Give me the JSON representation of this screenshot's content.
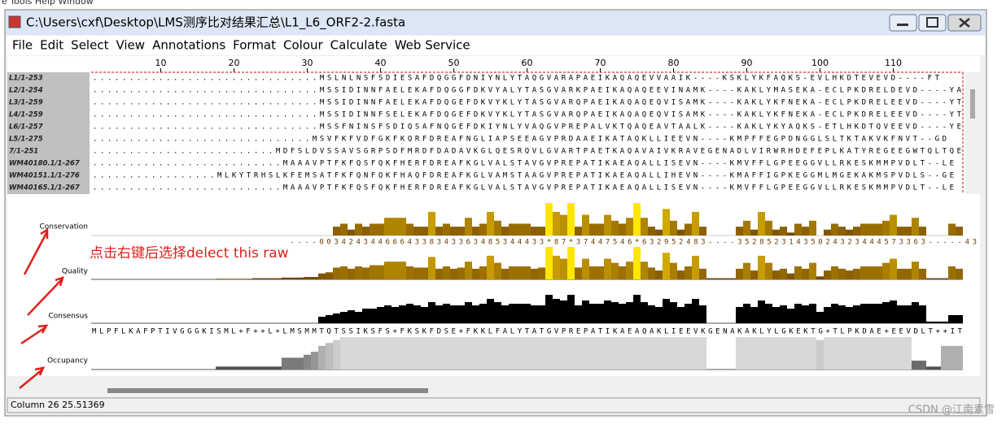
{
  "top_menu_partial": "e  Tools  Help  Window",
  "window": {
    "title": "C:\\Users\\cxf\\Desktop\\LMS测序比对结果汇总\\L1_L6_ORF2-2.fasta",
    "menu": [
      "File",
      "Edit",
      "Select",
      "View",
      "Annotations",
      "Format",
      "Colour",
      "Calculate",
      "Web Service"
    ]
  },
  "ruler": {
    "ticks": [
      10,
      20,
      30,
      40,
      50,
      60,
      70,
      80,
      90,
      100,
      110
    ]
  },
  "sequences": [
    {
      "name": "L1/1-253",
      "residues": "...............................MSLNLNSFSDIESAFDQGGFDNIYNLYTAQGVARAPAEIKAQAQEVVAAIK----KSKLYKFAQKS-EVLHKDTEVEVD----FT"
    },
    {
      "name": "L2/1-254",
      "residues": "...............................MSSIDINNFAELEKAFDQGGFDKVYALYTASGVARKPAEIKAQAQEEVINAMK----KAKLYMASEKA-ECLPKDRELDEVD----YA"
    },
    {
      "name": "L3/1-259",
      "residues": "...............................MSSIDINNFAELEKAFDQGEFDKVYKLYTASGVARQPAEIKAQAQEQVISAMK----KAKLYKFNEKA-ECLPKDRELEEVD----YT"
    },
    {
      "name": "L4/1-259",
      "residues": "...............................MSSIDINNFSELEKAFDQGEFDKVYKLYTASGVARQPAEIKAQAQEQVISAMK----KAKLYKFNEKA-ECLPKDRELEEVD----YT"
    },
    {
      "name": "L6/1-257",
      "residues": "...............................MSSFNINSFSDIQSAFNQGEFDKIYNLYVAQGVPREPALVKTQAQEAVTAALK----KAKLYKYAQKS-ETLHKDTQVEEVD----YE"
    },
    {
      "name": "L5/1-275",
      "residues": "..............................MSVFKFVDFGKFKQRFDREAFNGLIAPSEEAGVPRDAAEIKATAQKLLIEEVN----KMPFFEGPDNGGLSLTKTAKVKFNVT--GD"
    },
    {
      "name": "7/1-251",
      "residues": ".........................MDFSLDVSSAVSGRPSDFMRDFDADAVKGLQESRQVLGVARTPAETKAQAVAIVKRAVEGENADLVIRWRHDEFEPLKATYREGEEGWTQLTQE"
    },
    {
      "name": "WM40180.1/1-267",
      "residues": "..........................MAAAVPTFKFQSFQKFHERFDREAFKGLVALSTAVGVPREPATIKAEAQALLISEVN----KMVFFLGPEEGGVLLRKESKMMPVDLT--LE"
    },
    {
      "name": "WM40151.1/1-276",
      "residues": ".................MLKYTRHSLKFEMSATFKFQNFQKFHAQFDREAFKGLVAMSTAAGVPREPATIKAEAQALLIHEVN----KMAFFIGPKEGGMLMGEKAKMSPVDLS--GE"
    },
    {
      "name": "WM40165.1/1-267",
      "residues": "..........................MAAAVPTFKFQSFQKFHERFDREAFKGLVALSTAVGVPREPATIKAEAQALLISEVN----KMVFFLGPEEGGVLLRKESKMMPVDLT--LE"
    }
  ],
  "annotations": {
    "labels": [
      "Conservation",
      "Quality",
      "Consensus",
      "Occupancy"
    ],
    "conservation": {
      "ylim": [
        0,
        11
      ],
      "scores": "                           ----0034243446664338343363485344433*87*37447546*632952483----35285231435024323444573363-----43",
      "values": [
        0,
        0,
        0,
        0,
        0,
        0,
        0,
        0,
        0,
        0,
        0,
        0,
        0,
        0,
        0,
        0,
        0,
        0,
        0,
        0,
        0,
        0,
        0,
        0,
        0,
        0,
        0,
        0,
        0,
        0,
        0,
        0,
        0,
        3,
        4,
        2,
        4,
        3,
        4,
        4,
        6,
        6,
        6,
        4,
        3,
        3,
        8,
        3,
        4,
        3,
        3,
        6,
        3,
        4,
        8,
        5,
        3,
        4,
        4,
        4,
        3,
        3,
        11,
        8,
        7,
        11,
        3,
        7,
        4,
        4,
        7,
        5,
        4,
        6,
        11,
        6,
        3,
        2,
        9,
        5,
        2,
        4,
        8,
        3,
        0,
        0,
        0,
        0,
        3,
        5,
        2,
        8,
        5,
        2,
        3,
        1,
        4,
        3,
        5,
        0,
        2,
        4,
        3,
        2,
        3,
        4,
        4,
        4,
        5,
        7,
        3,
        3,
        6,
        3,
        0,
        0,
        0,
        4,
        3
      ]
    },
    "quality": {
      "ylim": [
        0,
        55
      ],
      "values": [
        0,
        0,
        0,
        0,
        0,
        0,
        0,
        0,
        0,
        0,
        0,
        0,
        0,
        0,
        0,
        0,
        0,
        1,
        1,
        1,
        1,
        1,
        2,
        2,
        2,
        2,
        3,
        3,
        3,
        4,
        4,
        10,
        12,
        20,
        22,
        18,
        22,
        20,
        24,
        24,
        30,
        30,
        30,
        22,
        20,
        20,
        38,
        18,
        22,
        18,
        20,
        30,
        18,
        22,
        40,
        28,
        18,
        22,
        22,
        22,
        18,
        20,
        55,
        40,
        35,
        55,
        20,
        35,
        22,
        22,
        35,
        28,
        22,
        30,
        55,
        30,
        20,
        15,
        45,
        28,
        15,
        22,
        40,
        18,
        2,
        2,
        2,
        2,
        18,
        28,
        15,
        40,
        28,
        15,
        18,
        10,
        22,
        18,
        28,
        5,
        15,
        22,
        18,
        15,
        18,
        22,
        22,
        22,
        28,
        35,
        18,
        18,
        30,
        18,
        2,
        2,
        2,
        22,
        18
      ]
    },
    "consensus": {
      "ylim": [
        0,
        40
      ],
      "sequence": "MLPFLKAFPTIVGGGKISML+F++L+LMSMMTQTSSIKSFS+FKSKFDSE+FKKLFALYTATGVPREPATIKAEAQAKLIEEVKGENAKAKLYLGKEKTG+TLPKDAE+EEVDLT++IT",
      "values": [
        0,
        0,
        0,
        0,
        0,
        0,
        0,
        0,
        0,
        0,
        0,
        0,
        0,
        0,
        0,
        0,
        0,
        0,
        0,
        0,
        0,
        0,
        0,
        0,
        0,
        0,
        0,
        0,
        0,
        0,
        0,
        8,
        10,
        12,
        14,
        16,
        14,
        18,
        18,
        20,
        22,
        20,
        22,
        24,
        22,
        20,
        26,
        22,
        24,
        22,
        22,
        26,
        22,
        24,
        30,
        26,
        22,
        24,
        24,
        24,
        22,
        22,
        35,
        30,
        28,
        35,
        22,
        28,
        24,
        24,
        28,
        26,
        24,
        26,
        35,
        26,
        22,
        20,
        30,
        26,
        20,
        24,
        30,
        22,
        0,
        0,
        0,
        0,
        20,
        24,
        20,
        28,
        24,
        20,
        22,
        18,
        24,
        22,
        24,
        14,
        20,
        24,
        22,
        20,
        22,
        24,
        24,
        24,
        26,
        28,
        22,
        22,
        26,
        22,
        2,
        2,
        2,
        10,
        10
      ]
    },
    "occupancy": {
      "ylim": [
        0,
        11
      ],
      "values": [
        0,
        0,
        0,
        0,
        0,
        0,
        0,
        0,
        0,
        0,
        0,
        0,
        0,
        0,
        0,
        0,
        0,
        1,
        1,
        1,
        1,
        1,
        1,
        1,
        1,
        1,
        4,
        4,
        4,
        5,
        6,
        8,
        9,
        10,
        11,
        11,
        11,
        11,
        11,
        11,
        11,
        11,
        11,
        11,
        11,
        11,
        11,
        11,
        11,
        11,
        11,
        11,
        11,
        11,
        11,
        11,
        11,
        11,
        11,
        11,
        11,
        11,
        11,
        11,
        11,
        11,
        11,
        11,
        11,
        11,
        11,
        11,
        11,
        11,
        11,
        11,
        11,
        11,
        11,
        11,
        11,
        11,
        11,
        11,
        0,
        0,
        0,
        0,
        11,
        11,
        11,
        11,
        11,
        11,
        11,
        11,
        11,
        11,
        11,
        10,
        11,
        11,
        11,
        11,
        11,
        11,
        11,
        11,
        11,
        11,
        11,
        11,
        3,
        3,
        1,
        1,
        8,
        8,
        8
      ]
    }
  },
  "note": "点击右键后选择delect this raw",
  "status": "Column 26  25.51369",
  "watermark": "CSDN @江南素雪"
}
